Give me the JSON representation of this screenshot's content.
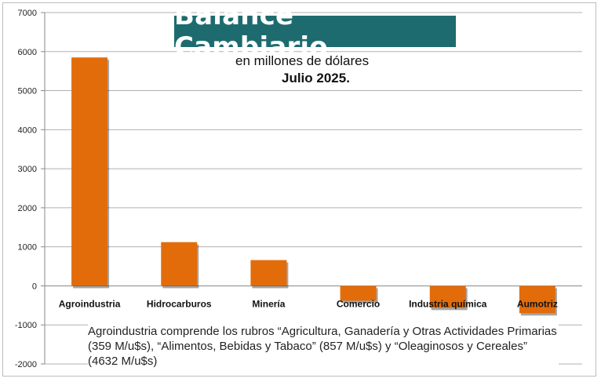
{
  "chart_data": {
    "type": "bar",
    "title": "Balance Cambiario",
    "subtitle": "en millones de dólares",
    "subtitle2": "Julio 2025.",
    "categories": [
      "Agroindustria",
      "Hidrocarburos",
      "Minería",
      "Comercio",
      "Industria química",
      "Aumotriz"
    ],
    "values": [
      5850,
      1120,
      660,
      -380,
      -560,
      -700
    ],
    "ylim": [
      -2000,
      7000
    ],
    "yticks": [
      -2000,
      -1000,
      0,
      1000,
      2000,
      3000,
      4000,
      5000,
      6000,
      7000
    ],
    "grid": true,
    "bar_color": "#e36c0a",
    "note": "Agroindustria comprende los rubros “Agricultura, Ganadería y Otras Actividades Primarias (359 M/u$s), “Alimentos, Bebidas y Tabaco” (857 M/u$s) y “Oleaginosos y Cereales” (4632 M/u$s)"
  },
  "colors": {
    "title_bg": "#1d6b6f",
    "grid": "#b0b0b0"
  }
}
